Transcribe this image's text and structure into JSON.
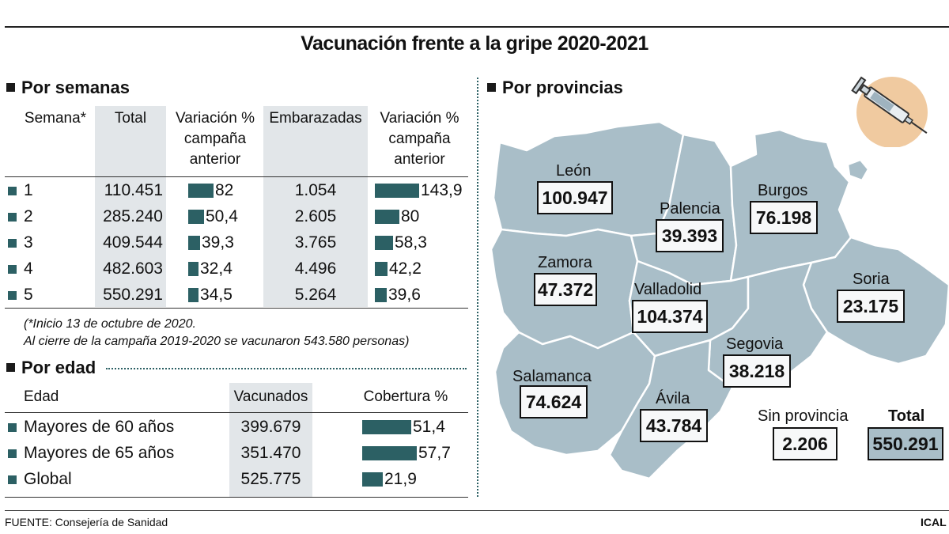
{
  "title": "Vacunación frente a la gripe 2020-2021",
  "weeks": {
    "heading": "Por semanas",
    "headers": [
      "Semana*",
      "Total",
      "Variación %\ncampaña\nanterior",
      "Embarazadas",
      "Variación %\ncampaña\nanterior"
    ],
    "rows": [
      {
        "week": "1",
        "total": "110.451",
        "var": "82",
        "preg": "1.054",
        "var2": "143,9"
      },
      {
        "week": "2",
        "total": "285.240",
        "var": "50,4",
        "preg": "2.605",
        "var2": "80"
      },
      {
        "week": "3",
        "total": "409.544",
        "var": "39,3",
        "preg": "3.765",
        "var2": "58,3"
      },
      {
        "week": "4",
        "total": "482.603",
        "var": "32,4",
        "preg": "4.496",
        "var2": "42,2"
      },
      {
        "week": "5",
        "total": "550.291",
        "var": "34,5",
        "preg": "5.264",
        "var2": "39,6"
      }
    ],
    "note1": "(*Inicio 13 de octubre de 2020.",
    "note2": "Al cierre de la campaña 2019-2020 se vacunaron 543.580 personas)"
  },
  "age": {
    "heading": "Por edad",
    "headers": [
      "Edad",
      "Vacunados",
      "Cobertura %"
    ],
    "rows": [
      {
        "label": "Mayores de 60 años",
        "vac": "399.679",
        "cov": "51,4"
      },
      {
        "label": "Mayores de 65 años",
        "vac": "351.470",
        "cov": "57,7"
      },
      {
        "label": "Global",
        "vac": "525.775",
        "cov": "21,9"
      }
    ]
  },
  "provinces": {
    "heading": "Por provincias",
    "items": [
      {
        "name": "León",
        "value": "100.947"
      },
      {
        "name": "Palencia",
        "value": "39.393"
      },
      {
        "name": "Burgos",
        "value": "76.198"
      },
      {
        "name": "Zamora",
        "value": "47.372"
      },
      {
        "name": "Valladolid",
        "value": "104.374"
      },
      {
        "name": "Soria",
        "value": "23.175"
      },
      {
        "name": "Segovia",
        "value": "38.218"
      },
      {
        "name": "Salamanca",
        "value": "74.624"
      },
      {
        "name": "Ávila",
        "value": "43.784"
      }
    ],
    "no_province_label": "Sin provincia",
    "no_province_value": "2.206",
    "total_label": "Total",
    "total_value": "550.291"
  },
  "source": "FUENTE: Consejería de Sanidad",
  "credit": "ICAL",
  "chart_data": [
    {
      "type": "bar",
      "categories": [
        "1",
        "2",
        "3",
        "4",
        "5"
      ],
      "series": [
        {
          "values": [
            82,
            50.4,
            39.3,
            32.4,
            34.5
          ]
        },
        {
          "values": [
            143.9,
            80,
            58.3,
            42.2,
            39.6
          ]
        }
      ],
      "totals": [
        110451,
        285240,
        409544,
        482603,
        550291
      ],
      "pregnant": [
        1054,
        2605,
        3765,
        4496,
        5264
      ]
    },
    {
      "type": "bar",
      "categories": [
        "Mayores de 60 años",
        "Mayores de 65 años",
        "Global"
      ],
      "values": [
        51.4,
        57.7,
        21.9
      ],
      "vaccinated": [
        399679,
        351470,
        525775
      ]
    }
  ],
  "colors": {
    "bar": "#2c6064",
    "map": "#a9bec8",
    "shade": "#e2e6e9"
  }
}
